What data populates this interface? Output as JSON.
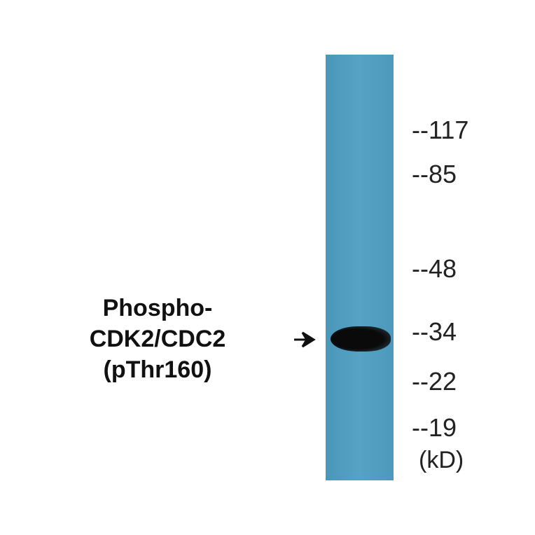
{
  "lane_color": "#4f9bbd",
  "label": [
    "Phospho-",
    "CDK2/CDC2",
    "(pThr160)"
  ],
  "markers": [
    "--117",
    "--85",
    "--48",
    "--34",
    "--22",
    "--19"
  ],
  "unit": "(kD)"
}
